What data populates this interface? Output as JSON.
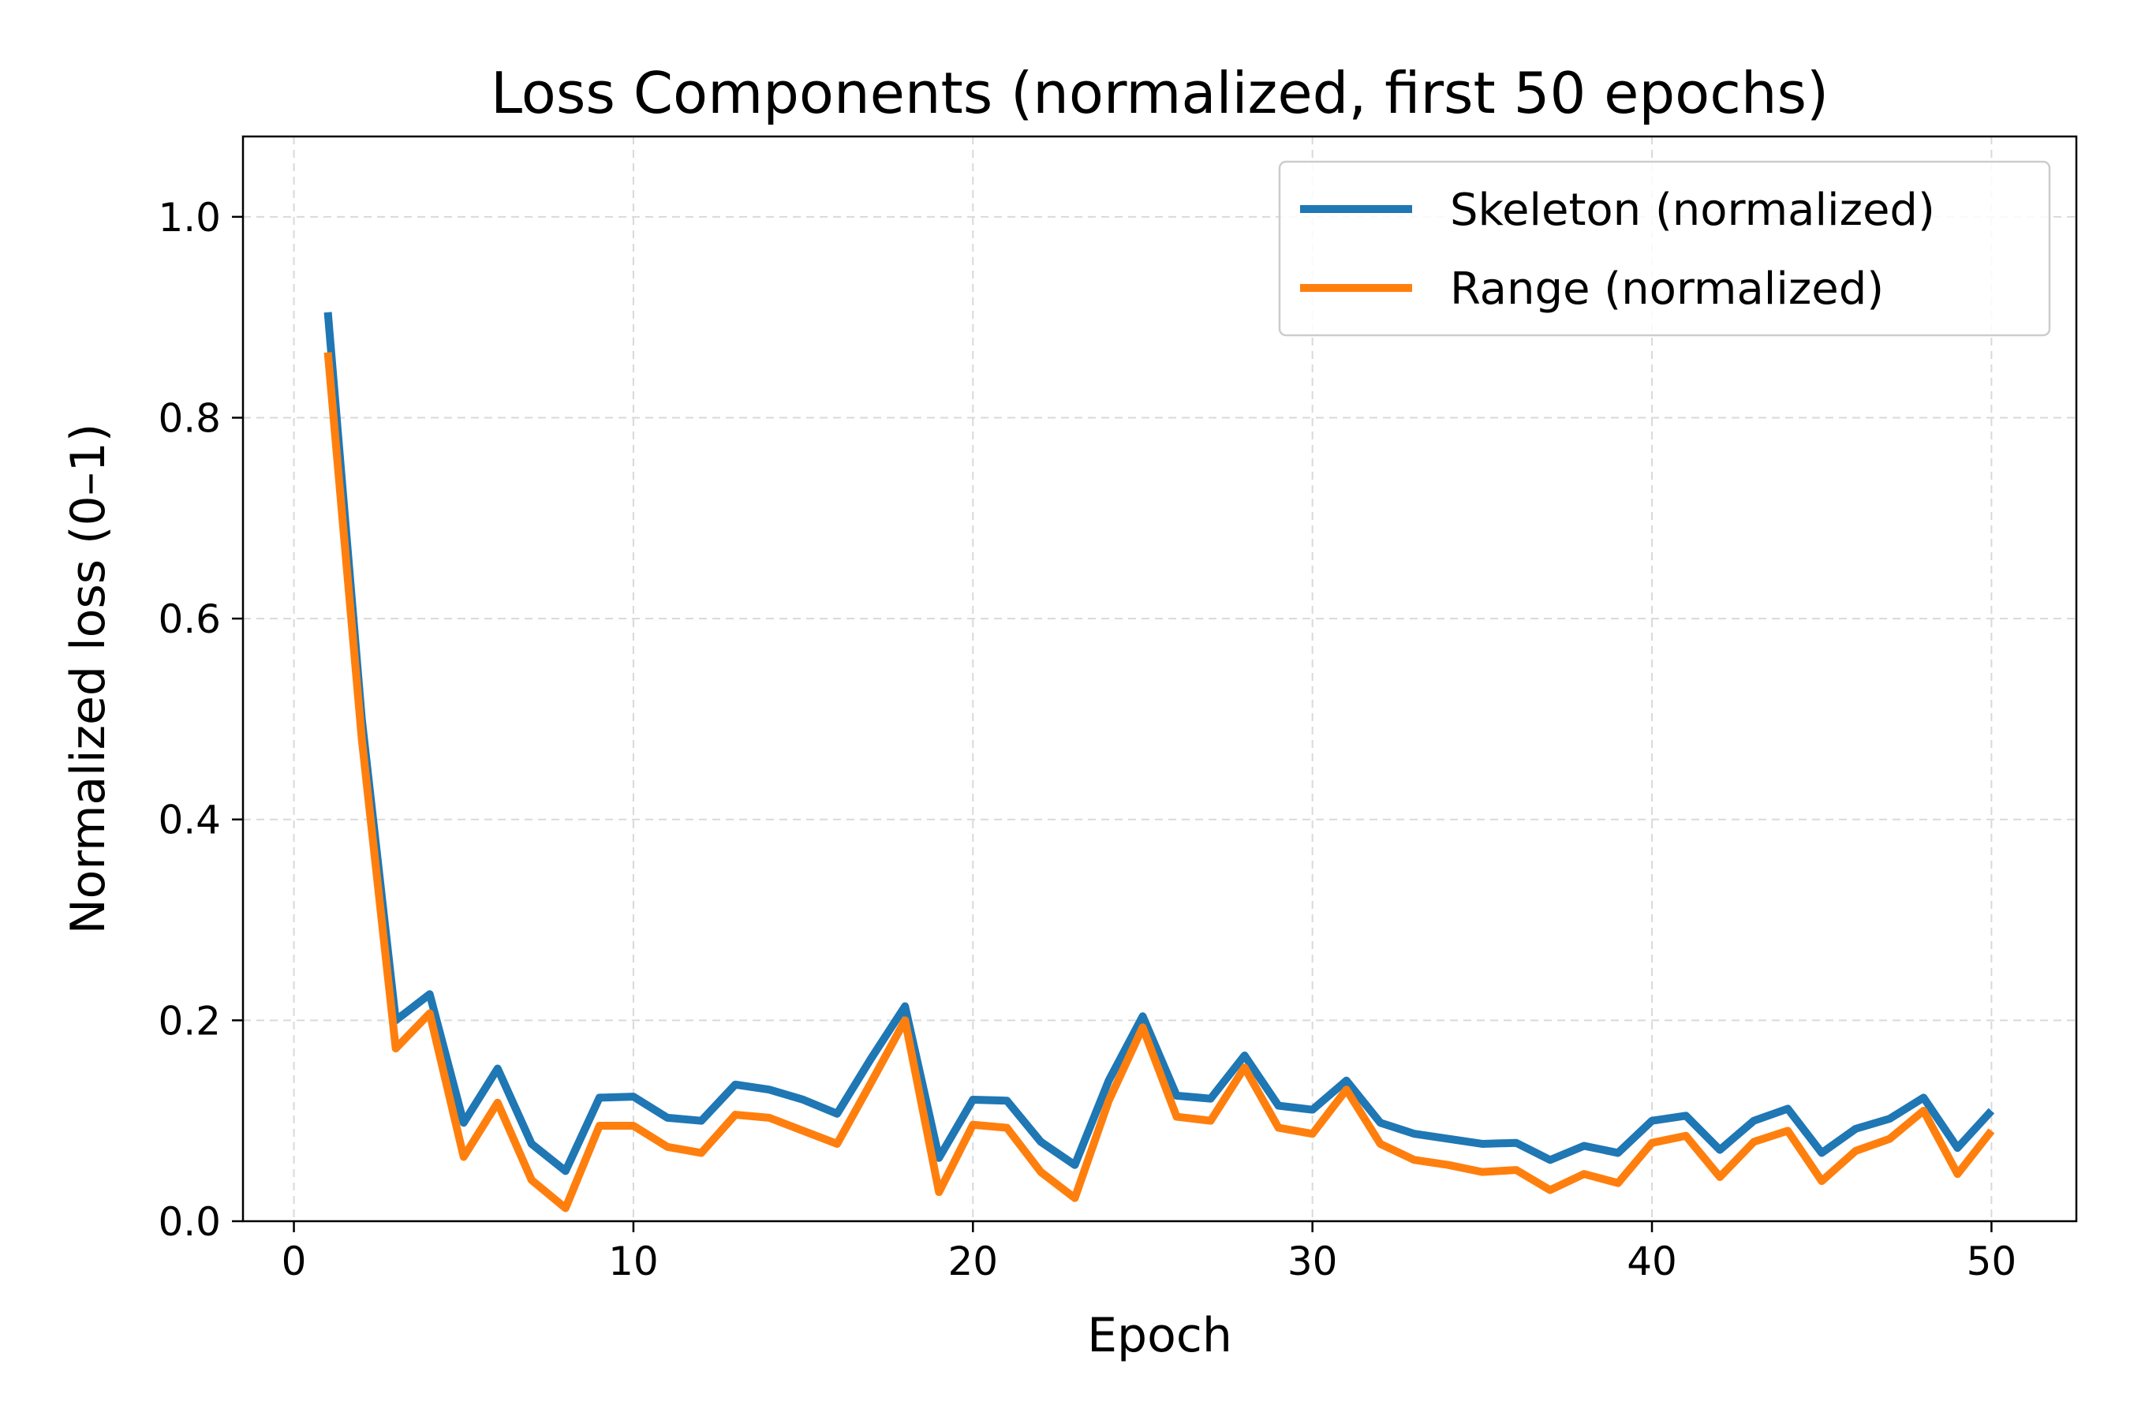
{
  "chart_data": {
    "type": "line",
    "title": "Loss Components (normalized, first 50 epochs)",
    "xlabel": "Epoch",
    "ylabel": "Normalized loss (0–1)",
    "xlim": [
      -1.5,
      52.5
    ],
    "ylim": [
      0.0,
      1.08
    ],
    "xticks": [
      0,
      10,
      20,
      30,
      40,
      50
    ],
    "xtick_labels": [
      "0",
      "10",
      "20",
      "30",
      "40",
      "50"
    ],
    "yticks": [
      0.0,
      0.2,
      0.4,
      0.6,
      0.8,
      1.0
    ],
    "ytick_labels": [
      "0.0",
      "0.2",
      "0.4",
      "0.6",
      "0.8",
      "1.0"
    ],
    "grid": true,
    "legend_position": "top-right",
    "x": [
      1,
      2,
      3,
      4,
      5,
      6,
      7,
      8,
      9,
      10,
      11,
      12,
      13,
      14,
      15,
      16,
      17,
      18,
      19,
      20,
      21,
      22,
      23,
      24,
      25,
      26,
      27,
      28,
      29,
      30,
      31,
      32,
      33,
      34,
      35,
      36,
      37,
      38,
      39,
      40,
      41,
      42,
      43,
      44,
      45,
      46,
      47,
      48,
      49,
      50
    ],
    "series": [
      {
        "name": "Skeleton (normalized)",
        "color": "#1f77b4",
        "values": [
          0.905,
          0.5,
          0.2,
          0.226,
          0.098,
          0.152,
          0.077,
          0.05,
          0.123,
          0.124,
          0.103,
          0.1,
          0.136,
          0.131,
          0.121,
          0.107,
          0.162,
          0.214,
          0.063,
          0.121,
          0.12,
          0.079,
          0.056,
          0.14,
          0.204,
          0.125,
          0.122,
          0.165,
          0.115,
          0.111,
          0.14,
          0.098,
          0.087,
          0.082,
          0.077,
          0.078,
          0.061,
          0.075,
          0.068,
          0.1,
          0.105,
          0.071,
          0.1,
          0.112,
          0.068,
          0.092,
          0.102,
          0.123,
          0.073,
          0.11
        ]
      },
      {
        "name": "Range (normalized)",
        "color": "#ff7f0e",
        "values": [
          0.865,
          0.48,
          0.172,
          0.207,
          0.064,
          0.118,
          0.041,
          0.013,
          0.095,
          0.095,
          0.074,
          0.068,
          0.106,
          0.103,
          0.09,
          0.077,
          0.138,
          0.2,
          0.029,
          0.096,
          0.093,
          0.049,
          0.023,
          0.12,
          0.193,
          0.104,
          0.1,
          0.153,
          0.093,
          0.087,
          0.131,
          0.077,
          0.061,
          0.056,
          0.049,
          0.051,
          0.031,
          0.047,
          0.038,
          0.078,
          0.085,
          0.044,
          0.079,
          0.09,
          0.04,
          0.07,
          0.082,
          0.11,
          0.047,
          0.09
        ]
      }
    ]
  }
}
